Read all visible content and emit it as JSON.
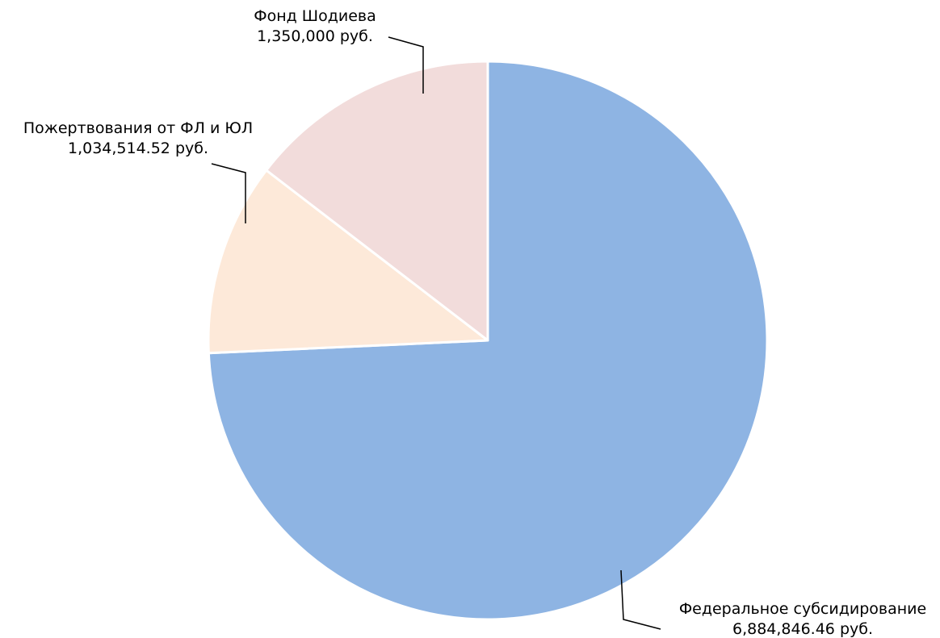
{
  "chart_data": {
    "type": "pie",
    "title": "",
    "unit": "руб.",
    "slices": [
      {
        "name": "Федеральное субсидирование",
        "value": 6884846.46,
        "value_label": "6,884,846.46 руб.",
        "color": "#8EB4E3"
      },
      {
        "name": "Пожертвования от ФЛ и ЮЛ",
        "value": 1034514.52,
        "value_label": "1,034,514.52 руб.",
        "color": "#FDE9D9"
      },
      {
        "name": "Фонд Шодиева",
        "value": 1350000,
        "value_label": "1,350,000 руб.",
        "color": "#F2DCDB"
      }
    ],
    "start_angle_deg": 0,
    "direction": "clockwise",
    "slice_border_color": "#ffffff",
    "leader_line_color": "#000000",
    "legend": "none"
  }
}
